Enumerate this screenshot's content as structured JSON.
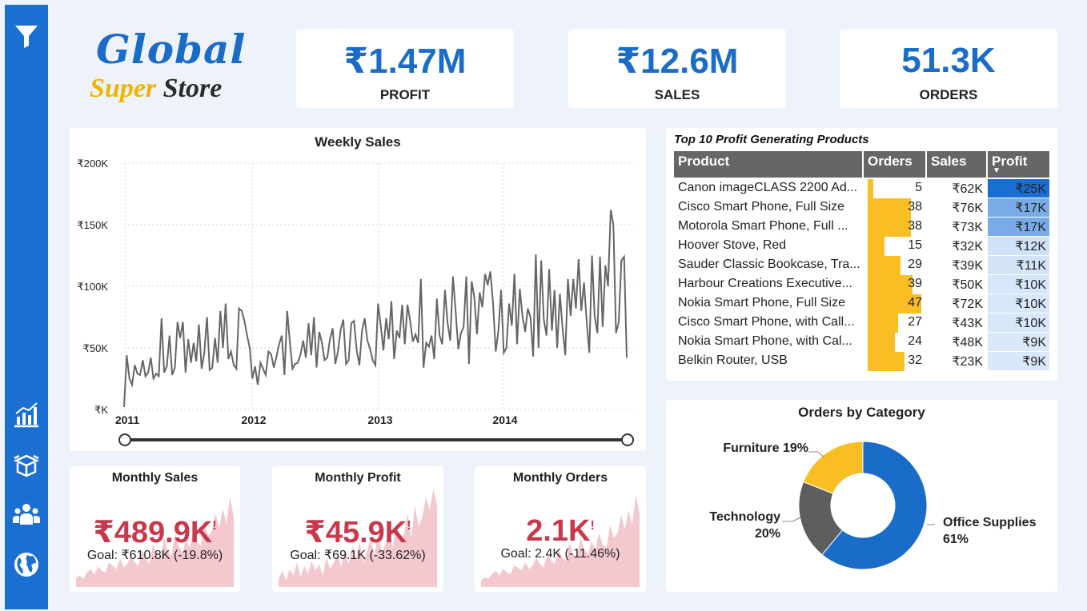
{
  "logo": {
    "line1": "Global",
    "super": "Super",
    "store": "Store"
  },
  "sidebar": {
    "icons": [
      "filter-icon",
      "bar-chart-icon",
      "box-icon",
      "users-icon",
      "globe-icon"
    ]
  },
  "kpis": [
    {
      "value": "₹1.47M",
      "label": "PROFIT"
    },
    {
      "value": "₹12.6M",
      "label": "SALES"
    },
    {
      "value": "51.3K",
      "label": "ORDERS"
    }
  ],
  "weekly": {
    "chart_data": {
      "type": "line",
      "title": "Weekly Sales",
      "y_ticks": [
        "₹200K",
        "₹150K",
        "₹100K",
        "₹50K",
        "₹K"
      ],
      "x_ticks": [
        "2011",
        "2012",
        "2013",
        "2014"
      ],
      "ylim": [
        0,
        200000
      ],
      "series": [
        {
          "name": "Weekly Sales (₹K)",
          "values": [
            2,
            44,
            25,
            20,
            36,
            29,
            28,
            40,
            27,
            30,
            42,
            25,
            29,
            27,
            74,
            30,
            35,
            60,
            28,
            34,
            71,
            58,
            71,
            30,
            57,
            38,
            54,
            39,
            69,
            33,
            46,
            75,
            32,
            34,
            58,
            38,
            80,
            50,
            86,
            41,
            47,
            36,
            33,
            82,
            80,
            72,
            60,
            50,
            25,
            35,
            20,
            38,
            33,
            28,
            47,
            45,
            34,
            43,
            53,
            60,
            28,
            80,
            55,
            33,
            37,
            38,
            45,
            56,
            42,
            70,
            44,
            75,
            34,
            63,
            54,
            40,
            42,
            57,
            66,
            37,
            47,
            65,
            73,
            37,
            40,
            70,
            72,
            48,
            36,
            64,
            74,
            56,
            49,
            40,
            36,
            86,
            68,
            48,
            74,
            57,
            88,
            41,
            64,
            58,
            85,
            53,
            85,
            72,
            55,
            61,
            54,
            106,
            34,
            54,
            51,
            60,
            41,
            90,
            60,
            53,
            97,
            70,
            56,
            108,
            80,
            49,
            62,
            67,
            108,
            37,
            104,
            91,
            61,
            95,
            83,
            110,
            101,
            112,
            86,
            47,
            64,
            97,
            46,
            50,
            86,
            68,
            110,
            53,
            98,
            76,
            63,
            82,
            75,
            43,
            126,
            50,
            121,
            73,
            60,
            114,
            64,
            97,
            50,
            94,
            66,
            44,
            106,
            76,
            106,
            82,
            122,
            80,
            103,
            72,
            46,
            125,
            76,
            62,
            124,
            67,
            117,
            100,
            162,
            150,
            62,
            71,
            121,
            124,
            42
          ]
        }
      ]
    },
    "slider": {
      "min": "2011",
      "max": "2014"
    }
  },
  "topten": {
    "title": "Top 10 Profit Generating Products",
    "headers": {
      "product": "Product",
      "orders": "Orders",
      "sales": "Sales",
      "profit": "Profit"
    },
    "rows": [
      {
        "product": "Canon imageCLASS 2200 Ad...",
        "orders": 5,
        "orders_text": "5",
        "sales": "₹62K",
        "profit": "₹25K",
        "profit_val": 25
      },
      {
        "product": "Cisco Smart Phone, Full Size",
        "orders": 38,
        "orders_text": "38",
        "sales": "₹76K",
        "profit": "₹17K",
        "profit_val": 17
      },
      {
        "product": "Motorola Smart Phone, Full ...",
        "orders": 38,
        "orders_text": "38",
        "sales": "₹73K",
        "profit": "₹17K",
        "profit_val": 17
      },
      {
        "product": "Hoover Stove, Red",
        "orders": 15,
        "orders_text": "15",
        "sales": "₹32K",
        "profit": "₹12K",
        "profit_val": 12
      },
      {
        "product": "Sauder Classic Bookcase, Tra...",
        "orders": 29,
        "orders_text": "29",
        "sales": "₹39K",
        "profit": "₹11K",
        "profit_val": 11
      },
      {
        "product": "Harbour Creations Executive...",
        "orders": 39,
        "orders_text": "39",
        "sales": "₹50K",
        "profit": "₹10K",
        "profit_val": 10
      },
      {
        "product": "Nokia Smart Phone, Full Size",
        "orders": 47,
        "orders_text": "47",
        "sales": "₹72K",
        "profit": "₹10K",
        "profit_val": 10
      },
      {
        "product": "Cisco Smart Phone, with Call...",
        "orders": 27,
        "orders_text": "27",
        "sales": "₹43K",
        "profit": "₹10K",
        "profit_val": 10
      },
      {
        "product": "Nokia Smart Phone, with Cal...",
        "orders": 24,
        "orders_text": "24",
        "sales": "₹48K",
        "profit": "₹9K",
        "profit_val": 9
      },
      {
        "product": "Belkin Router, USB",
        "orders": 32,
        "orders_text": "32",
        "sales": "₹23K",
        "profit": "₹9K",
        "profit_val": 9
      }
    ]
  },
  "category": {
    "chart_data": {
      "type": "pie",
      "title": "Orders by Category",
      "slices": [
        {
          "name": "Office Supplies",
          "value": 61,
          "label_pct": "61%",
          "color": "#1a6cc9"
        },
        {
          "name": "Technology",
          "value": 20,
          "label_pct": "20%",
          "color": "#5e5e5e"
        },
        {
          "name": "Furniture",
          "value": 19,
          "label_pct": "19%",
          "color": "#f9be24"
        }
      ]
    }
  },
  "monthly": [
    {
      "title": "Monthly Sales",
      "value": "₹489.9K",
      "bang": "!",
      "goal": "Goal: ₹610.8K (-19.8%)"
    },
    {
      "title": "Monthly Profit",
      "value": "₹45.9K",
      "bang": "!",
      "goal": "Goal: ₹69.1K (-33.62%)"
    },
    {
      "title": "Monthly Orders",
      "value": "2.1K",
      "bang": "!",
      "goal": "Goal: 2.4K (-11.46%)"
    }
  ],
  "colors": {
    "accent": "#1a6cc9",
    "bar": "#f9be24",
    "alert": "#c9384a",
    "spark": "#f3c9cf"
  }
}
